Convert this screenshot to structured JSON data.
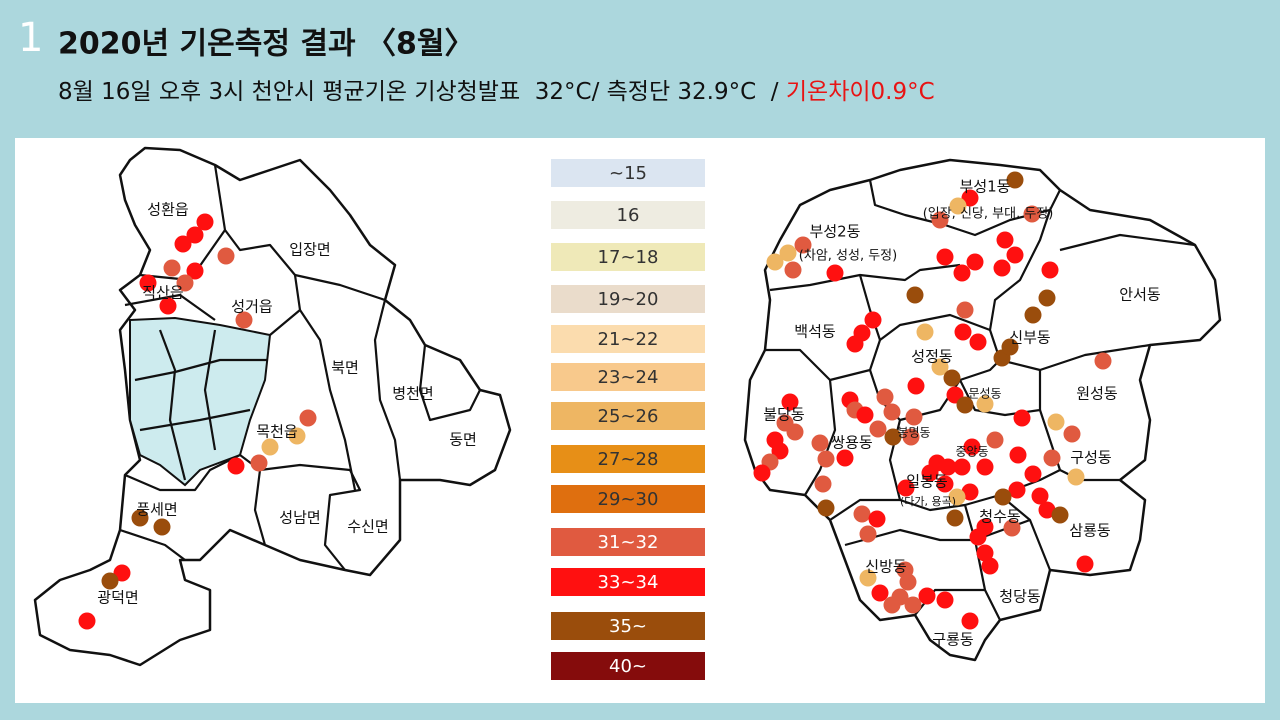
{
  "slide_number": "1",
  "title": "2020년 기온측정 결과 〈8월〉",
  "subtitle": {
    "main": "8월 16일 오후 3시 천안시 평균기온 기상청발표  32°C/ 측정단 32.9°C  / ",
    "highlight": "기온차이0.9°C",
    "highlight_color": "#e81414"
  },
  "legend": [
    {
      "label": "~15",
      "color": "#dbe5f1",
      "text_color": "#333333"
    },
    {
      "label": "16",
      "color": "#eeece1",
      "text_color": "#333333"
    },
    {
      "label": "17~18",
      "color": "#efe9b8",
      "text_color": "#333333"
    },
    {
      "label": "19~20",
      "color": "#eadccb",
      "text_color": "#333333"
    },
    {
      "label": "21~22",
      "color": "#fbdcae",
      "text_color": "#333333"
    },
    {
      "label": "23~24",
      "color": "#f8c98c",
      "text_color": "#333333"
    },
    {
      "label": "25~26",
      "color": "#eeb663",
      "text_color": "#333333"
    },
    {
      "label": "27~28",
      "color": "#e78f17",
      "text_color": "#333333"
    },
    {
      "label": "29~30",
      "color": "#df6f0f",
      "text_color": "#333333"
    },
    {
      "label": "31~32",
      "color": "#e05a40",
      "text_color": "#ffffff"
    },
    {
      "label": "33~34",
      "color": "#ff1010",
      "text_color": "#ffffff"
    },
    {
      "label": "35~",
      "color": "#9a4d0c",
      "text_color": "#ffffff"
    },
    {
      "label": "40~",
      "color": "#850c0c",
      "text_color": "#ffffff"
    }
  ],
  "left_map": {
    "regions": [
      "성환읍",
      "입장면",
      "직산읍",
      "성거읍",
      "북면",
      "병천면",
      "목천읍",
      "동면",
      "풍세면",
      "성남면",
      "수신면",
      "광덕면"
    ]
  },
  "right_map": {
    "regions": [
      "부성1동",
      "(입장, 신당, 부대, 두정)",
      "부성2동",
      "(차암, 성성, 두정)",
      "안서동",
      "백석동",
      "신부동",
      "성정동",
      "문성동",
      "원성동",
      "불당동",
      "봉명동",
      "쌍용동",
      "중앙동",
      "구성동",
      "일봉동",
      "(다가, 용곡)",
      "청수동",
      "삼룡동",
      "신방동",
      "청당동",
      "구룡동"
    ]
  }
}
